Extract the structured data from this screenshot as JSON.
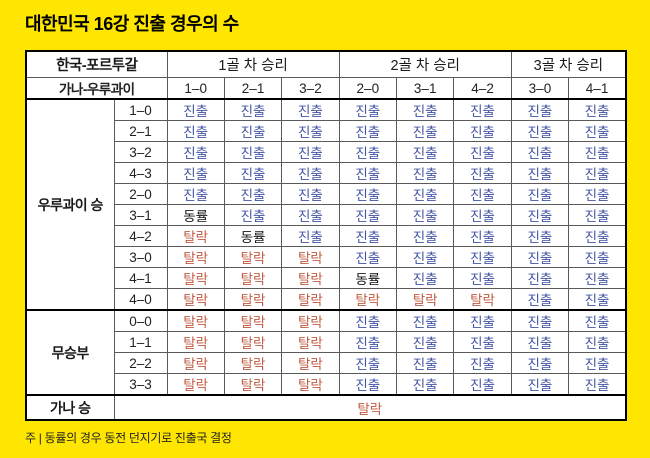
{
  "title": "대한민국 16강 진출 경우의 수",
  "footnote": "주 | 동률의 경우 동전 던지기로 진출국 결정",
  "colors": {
    "background": "#FFE600",
    "table_bg": "#FFFFFF",
    "advance": "#4253A4",
    "eliminated": "#C15A41",
    "tie": "#141414",
    "grid_line": "#5A5A5A",
    "thick_line": "#000000"
  },
  "chart_data": {
    "type": "table",
    "title": "대한민국 16강 진출 경우의 수",
    "note": "주 | 동률의 경우 동전 던지기로 진출국 결정",
    "header": {
      "match_label": "한국-포르투갈",
      "opponent_label": "가나-우루과이",
      "groups": [
        {
          "label": "1골 차 승리",
          "span": 3
        },
        {
          "label": "2골 차 승리",
          "span": 3
        },
        {
          "label": "3골 차 승리",
          "span": 2
        }
      ],
      "scores": [
        "1–0",
        "2–1",
        "3–2",
        "2–0",
        "3–1",
        "4–2",
        "3–0",
        "4–1"
      ]
    },
    "status_classes": {
      "진출": "advance",
      "탈락": "eliminated",
      "동률": "tie"
    },
    "sections": [
      {
        "label": "우루과이 승",
        "rows": [
          {
            "score": "1–0",
            "cells": [
              "진출",
              "진출",
              "진출",
              "진출",
              "진출",
              "진출",
              "진출",
              "진출"
            ]
          },
          {
            "score": "2–1",
            "cells": [
              "진출",
              "진출",
              "진출",
              "진출",
              "진출",
              "진출",
              "진출",
              "진출"
            ]
          },
          {
            "score": "3–2",
            "cells": [
              "진출",
              "진출",
              "진출",
              "진출",
              "진출",
              "진출",
              "진출",
              "진출"
            ]
          },
          {
            "score": "4–3",
            "cells": [
              "진출",
              "진출",
              "진출",
              "진출",
              "진출",
              "진출",
              "진출",
              "진출"
            ]
          },
          {
            "score": "2–0",
            "cells": [
              "진출",
              "진출",
              "진출",
              "진출",
              "진출",
              "진출",
              "진출",
              "진출"
            ]
          },
          {
            "score": "3–1",
            "cells": [
              "동률",
              "진출",
              "진출",
              "진출",
              "진출",
              "진출",
              "진출",
              "진출"
            ]
          },
          {
            "score": "4–2",
            "cells": [
              "탈락",
              "동률",
              "진출",
              "진출",
              "진출",
              "진출",
              "진출",
              "진출"
            ]
          },
          {
            "score": "3–0",
            "cells": [
              "탈락",
              "탈락",
              "탈락",
              "진출",
              "진출",
              "진출",
              "진출",
              "진출"
            ]
          },
          {
            "score": "4–1",
            "cells": [
              "탈락",
              "탈락",
              "탈락",
              "동률",
              "진출",
              "진출",
              "진출",
              "진출"
            ]
          },
          {
            "score": "4–0",
            "cells": [
              "탈락",
              "탈락",
              "탈락",
              "탈락",
              "탈락",
              "탈락",
              "진출",
              "진출"
            ]
          }
        ]
      },
      {
        "label": "무승부",
        "rows": [
          {
            "score": "0–0",
            "cells": [
              "탈락",
              "탈락",
              "탈락",
              "진출",
              "진출",
              "진출",
              "진출",
              "진출"
            ]
          },
          {
            "score": "1–1",
            "cells": [
              "탈락",
              "탈락",
              "탈락",
              "진출",
              "진출",
              "진출",
              "진출",
              "진출"
            ]
          },
          {
            "score": "2–2",
            "cells": [
              "탈락",
              "탈락",
              "탈락",
              "진출",
              "진출",
              "진출",
              "진출",
              "진출"
            ]
          },
          {
            "score": "3–3",
            "cells": [
              "탈락",
              "탈락",
              "탈락",
              "진출",
              "진출",
              "진출",
              "진출",
              "진출"
            ]
          }
        ]
      },
      {
        "label": "가나 승",
        "merged": "탈락"
      }
    ]
  }
}
